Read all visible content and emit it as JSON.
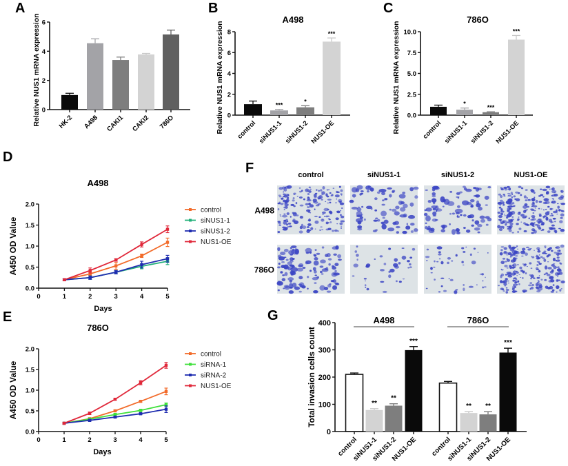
{
  "panel_labels": [
    "A",
    "B",
    "C",
    "D",
    "E",
    "F",
    "G"
  ],
  "chart_data": [
    {
      "id": "A",
      "type": "bar",
      "title": "",
      "ylabel": "Relative NUS1 mRNA expression",
      "xlabel": "",
      "ylim": [
        0,
        6
      ],
      "yticks": [
        "0",
        "2",
        "4",
        "6"
      ],
      "ytick_values": [
        0,
        2,
        4,
        6
      ],
      "categories": [
        "HK-2",
        "A498",
        "CAKI1",
        "CAKI2",
        "786O"
      ],
      "values": [
        1.0,
        4.55,
        3.4,
        3.78,
        5.15
      ],
      "errors": [
        0.12,
        0.3,
        0.2,
        0.07,
        0.3
      ],
      "colors": [
        "#0a0a0a",
        "#a3a3a7",
        "#7e7e7e",
        "#d3d3d3",
        "#606060"
      ],
      "annotations": [
        "",
        "",
        "",
        "",
        ""
      ]
    },
    {
      "id": "B",
      "type": "bar",
      "title": "A498",
      "ylabel": "Relative NUS1 mRNA expression",
      "xlabel": "",
      "ylim": [
        0,
        8
      ],
      "yticks": [
        "0",
        "2",
        "4",
        "6",
        "8"
      ],
      "ytick_values": [
        0,
        2,
        4,
        6,
        8
      ],
      "categories": [
        "control",
        "siNUS1-1",
        "siNUS1-2",
        "NUS1-OE"
      ],
      "values": [
        1.05,
        0.45,
        0.75,
        7.05
      ],
      "errors": [
        0.3,
        0.1,
        0.15,
        0.35
      ],
      "colors": [
        "#0a0a0a",
        "#a3a3a7",
        "#7e7e7e",
        "#d3d3d3"
      ],
      "annotations": [
        "",
        "***",
        "*",
        "***"
      ]
    },
    {
      "id": "C",
      "type": "bar",
      "title": "786O",
      "ylabel": "Relative NUS1 mRNA expression",
      "xlabel": "",
      "ylim": [
        0,
        10
      ],
      "yticks": [
        "0.0",
        "2.5",
        "5.0",
        "7.5",
        "10.0"
      ],
      "ytick_values": [
        0,
        2.5,
        5,
        7.5,
        10
      ],
      "categories": [
        "control",
        "siNUS1-1",
        "siNUS1-2",
        "NUS1-OE"
      ],
      "values": [
        1.0,
        0.65,
        0.35,
        9.05
      ],
      "errors": [
        0.2,
        0.2,
        0.05,
        0.5
      ],
      "colors": [
        "#0a0a0a",
        "#a3a3a7",
        "#7e7e7e",
        "#d3d3d3"
      ],
      "annotations": [
        "",
        "*",
        "***",
        "***"
      ]
    },
    {
      "id": "D",
      "type": "line",
      "title": "A498",
      "ylabel": "A450 OD Value",
      "xlabel": "Days",
      "xlim": [
        0,
        5
      ],
      "ylim": [
        0,
        2.0
      ],
      "xticks": [
        "0",
        "1",
        "2",
        "3",
        "4",
        "5"
      ],
      "xtick_values": [
        0,
        1,
        2,
        3,
        4,
        5
      ],
      "yticks": [
        "0.0",
        "0.5",
        "1.0",
        "1.5",
        "2.0"
      ],
      "ytick_values": [
        0,
        0.5,
        1,
        1.5,
        2
      ],
      "x": [
        1,
        2,
        3,
        4,
        5
      ],
      "legend_position": "right",
      "series": [
        {
          "name": "control",
          "color": "#f26b2a",
          "values": [
            0.2,
            0.34,
            0.53,
            0.77,
            1.09
          ],
          "errors": [
            0.02,
            0.04,
            0.08,
            0.04,
            0.1
          ]
        },
        {
          "name": "siNUS1-1",
          "color": "#22b07a",
          "values": [
            0.2,
            0.25,
            0.38,
            0.52,
            0.64
          ],
          "errors": [
            0.02,
            0.04,
            0.04,
            0.06,
            0.08
          ]
        },
        {
          "name": "siNUS1-2",
          "color": "#1f2db0",
          "values": [
            0.2,
            0.25,
            0.38,
            0.56,
            0.7
          ],
          "errors": [
            0.02,
            0.04,
            0.04,
            0.08,
            0.08
          ]
        },
        {
          "name": "NUS1-OE",
          "color": "#e0283a",
          "values": [
            0.2,
            0.42,
            0.67,
            1.04,
            1.4
          ],
          "errors": [
            0.02,
            0.06,
            0.03,
            0.06,
            0.08
          ]
        }
      ]
    },
    {
      "id": "E",
      "type": "line",
      "title": "786O",
      "ylabel": "A450 OD Value",
      "xlabel": "Days",
      "xlim": [
        0,
        5
      ],
      "ylim": [
        0,
        2.0
      ],
      "xticks": [
        "0",
        "1",
        "2",
        "3",
        "4",
        "5"
      ],
      "xtick_values": [
        0,
        1,
        2,
        3,
        4,
        5
      ],
      "yticks": [
        "0.0",
        "0.5",
        "1.0",
        "1.5",
        "2.0"
      ],
      "ytick_values": [
        0,
        0.5,
        1,
        1.5,
        2
      ],
      "x": [
        1,
        2,
        3,
        4,
        5
      ],
      "legend_position": "right",
      "series": [
        {
          "name": "control",
          "color": "#f26b2a",
          "values": [
            0.2,
            0.31,
            0.5,
            0.73,
            0.97
          ],
          "errors": [
            0.02,
            0.02,
            0.02,
            0.02,
            0.08
          ]
        },
        {
          "name": "siRNA-1",
          "color": "#3ee03a",
          "values": [
            0.2,
            0.3,
            0.41,
            0.51,
            0.65
          ],
          "errors": [
            0.02,
            0.02,
            0.03,
            0.03,
            0.04
          ]
        },
        {
          "name": "siRNA-2",
          "color": "#1f2db0",
          "values": [
            0.2,
            0.27,
            0.35,
            0.43,
            0.54
          ],
          "errors": [
            0.02,
            0.02,
            0.02,
            0.02,
            0.08
          ]
        },
        {
          "name": "NUS1-OE",
          "color": "#e0283a",
          "values": [
            0.2,
            0.44,
            0.78,
            1.18,
            1.6
          ],
          "errors": [
            0.02,
            0.03,
            0.02,
            0.05,
            0.07
          ]
        }
      ]
    },
    {
      "id": "G",
      "type": "bar",
      "title": "",
      "ylabel": "Total invasion cells count",
      "xlabel": "",
      "ylim": [
        0,
        400
      ],
      "yticks": [
        "0",
        "100",
        "200",
        "300",
        "400"
      ],
      "ytick_values": [
        0,
        100,
        200,
        300,
        400
      ],
      "groups": [
        {
          "name": "A498",
          "categories": [
            "control",
            "siNUS1-1",
            "siNUS1-2",
            "NUS1-OE"
          ],
          "values": [
            210,
            79,
            95,
            299
          ],
          "errors": [
            5,
            5,
            7,
            13
          ],
          "annotations": [
            "",
            "**",
            "**",
            "***"
          ]
        },
        {
          "name": "786O",
          "categories": [
            "control",
            "siNUS1-1",
            "siNUS1-2",
            "NUS1-OE"
          ],
          "values": [
            178,
            68,
            63,
            290
          ],
          "errors": [
            6,
            5,
            10,
            16
          ],
          "annotations": [
            "",
            "**",
            "**",
            "***"
          ]
        }
      ],
      "colors": [
        "#ffffff",
        "#d3d3d3",
        "#7e7e7e",
        "#0a0a0a"
      ]
    }
  ],
  "panel_f": {
    "columns": [
      "control",
      "siNUS1-1",
      "siNUS1-2",
      "NUS1-OE"
    ],
    "rows": [
      "A498",
      "786O"
    ],
    "cell_density": [
      [
        0.75,
        0.3,
        0.35,
        0.95
      ],
      [
        0.45,
        0.15,
        0.18,
        0.9
      ]
    ],
    "stain_color": "#3b45c4",
    "background_color": "#dde3e6"
  }
}
